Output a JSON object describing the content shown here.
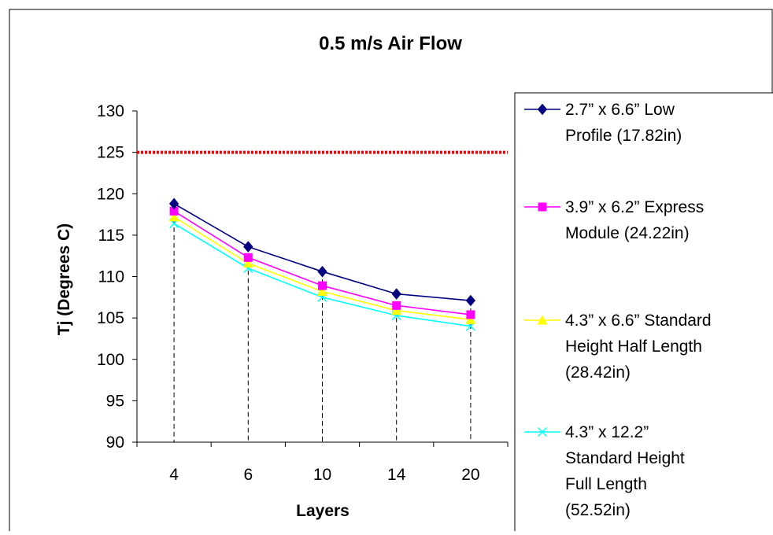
{
  "chart_data": {
    "type": "line",
    "title": "0.5 m/s Air Flow",
    "xlabel": "Layers",
    "ylabel": "Tj (Degrees C)",
    "categories": [
      "4",
      "6",
      "10",
      "14",
      "20"
    ],
    "ylim": [
      90,
      130
    ],
    "yticks": [
      90,
      95,
      100,
      105,
      110,
      115,
      120,
      125,
      130
    ],
    "grid": false,
    "legend_position": "right",
    "reference_line": {
      "value": 125,
      "color": "#ff0000",
      "style": "dotted"
    },
    "drop_lines": true,
    "series": [
      {
        "name": "2.7” x 6.6” Low Profile (17.82in)",
        "legend_lines": [
          "2.7” x 6.6” Low",
          "Profile (17.82in)"
        ],
        "color": "#000080",
        "marker": "diamond",
        "values": [
          118.8,
          113.6,
          110.6,
          107.9,
          107.1
        ]
      },
      {
        "name": "3.9” x 6.2” Express Module (24.22in)",
        "legend_lines": [
          "3.9” x 6.2” Express",
          "Module (24.22in)"
        ],
        "color": "#ff00ff",
        "marker": "square",
        "values": [
          117.9,
          112.3,
          108.9,
          106.5,
          105.4
        ]
      },
      {
        "name": "4.3” x 6.6” Standard Height Half Length (28.42in)",
        "legend_lines": [
          "4.3” x 6.6” Standard",
          "Height Half Length",
          "(28.42in)"
        ],
        "color": "#ffff00",
        "marker": "triangle",
        "values": [
          117.2,
          111.6,
          108.2,
          105.9,
          104.8
        ]
      },
      {
        "name": "4.3” x 12.2” Standard Height Full Length (52.52in)",
        "legend_lines": [
          "4.3” x 12.2”",
          "Standard Height",
          "Full Length",
          "(52.52in)"
        ],
        "color": "#00ffff",
        "marker": "x",
        "values": [
          116.4,
          111.0,
          107.5,
          105.3,
          104.0
        ]
      }
    ]
  }
}
